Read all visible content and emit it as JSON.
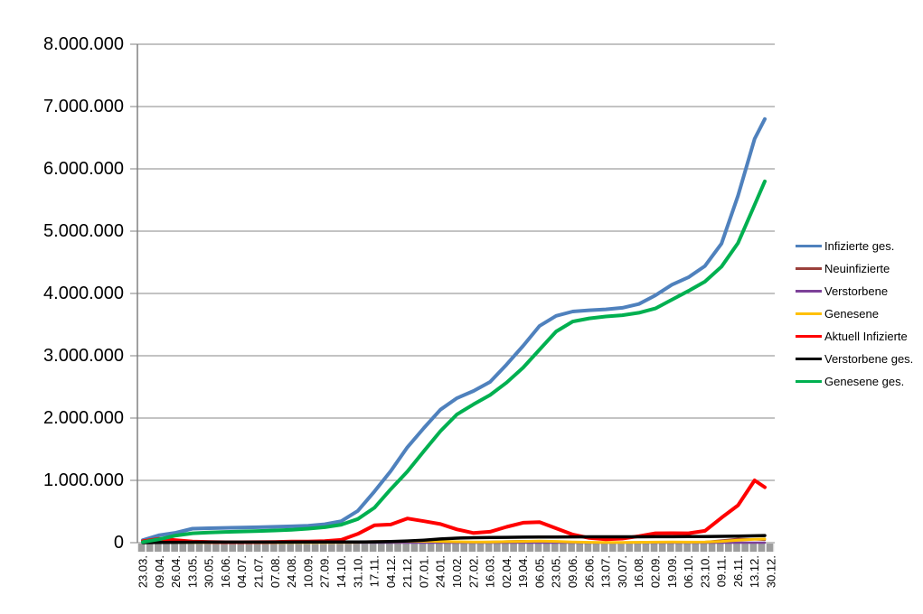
{
  "chart_data": {
    "type": "line",
    "title": "",
    "xlabel": "",
    "ylabel": "",
    "ylim": [
      0,
      8000000
    ],
    "ytick_step": 1000000,
    "ytick_labels": [
      "0",
      "1.000.000",
      "2.000.000",
      "3.000.000",
      "4.000.000",
      "5.000.000",
      "6.000.000",
      "7.000.000",
      "8.000.000"
    ],
    "grid": true,
    "legend_position": "right",
    "categories": [
      "23.03.",
      "09.04.",
      "26.04.",
      "13.05.",
      "30.05.",
      "16.06.",
      "04.07.",
      "21.07.",
      "07.08.",
      "24.08.",
      "10.09.",
      "27.09.",
      "14.10.",
      "31.10.",
      "17.11.",
      "04.12.",
      "21.12.",
      "07.01.",
      "24.01.",
      "10.02.",
      "27.02.",
      "16.03.",
      "02.04.",
      "19.04.",
      "06.05.",
      "23.05.",
      "09.06.",
      "26.06.",
      "13.07.",
      "30.07.",
      "16.08.",
      "02.09.",
      "19.09.",
      "06.10.",
      "23.10.",
      "09.11.",
      "26.11.",
      "13.12.",
      "30.12."
    ],
    "series": [
      {
        "name": "Infizierte ges.",
        "color": "#4F81BD",
        "width": 4,
        "values": [
          40000,
          120000,
          160000,
          225000,
          232000,
          237000,
          243000,
          248000,
          255000,
          263000,
          272000,
          295000,
          345000,
          510000,
          820000,
          1150000,
          1530000,
          1840000,
          2135000,
          2320000,
          2435000,
          2580000,
          2860000,
          3160000,
          3480000,
          3640000,
          3710000,
          3730000,
          3745000,
          3770000,
          3830000,
          3970000,
          4140000,
          4260000,
          4440000,
          4800000,
          5570000,
          6480000,
          6800000
        ]
      },
      {
        "name": "Neuinfizierte",
        "color": "#9A403B",
        "width": 2.5,
        "values": [
          4000,
          5000,
          2000,
          900,
          500,
          400,
          400,
          500,
          900,
          1400,
          1500,
          2000,
          5000,
          15000,
          22000,
          22000,
          28000,
          22000,
          15000,
          9000,
          8000,
          13000,
          20000,
          24000,
          20000,
          8000,
          3500,
          1200,
          1000,
          2500,
          5500,
          10000,
          8500,
          8000,
          12000,
          35000,
          60000,
          55000,
          45000
        ]
      },
      {
        "name": "Verstorbene",
        "color": "#7D4199",
        "width": 2.5,
        "values": [
          30,
          150,
          200,
          150,
          60,
          30,
          10,
          10,
          10,
          10,
          10,
          20,
          30,
          60,
          150,
          300,
          500,
          700,
          700,
          550,
          400,
          250,
          200,
          200,
          180,
          120,
          80,
          40,
          20,
          20,
          20,
          40,
          60,
          60,
          70,
          120,
          250,
          400,
          350
        ]
      },
      {
        "name": "Genesene",
        "color": "#FFC000",
        "width": 3,
        "values": [
          2000,
          4000,
          3500,
          1500,
          800,
          500,
          400,
          500,
          700,
          900,
          1000,
          1300,
          2500,
          6000,
          14000,
          18000,
          22000,
          25000,
          20000,
          14000,
          10000,
          11000,
          16000,
          20000,
          24000,
          20000,
          12000,
          6000,
          3000,
          3500,
          6000,
          9000,
          10000,
          9000,
          10000,
          20000,
          40000,
          55000,
          60000
        ]
      },
      {
        "name": "Aktuell Infizierte",
        "color": "#FF0000",
        "width": 4,
        "values": [
          25000,
          62000,
          39000,
          17000,
          10000,
          7000,
          7000,
          9000,
          12000,
          17000,
          19000,
          24000,
          45000,
          140000,
          278000,
          292000,
          388000,
          345000,
          298000,
          213000,
          155000,
          175000,
          253000,
          320000,
          330000,
          230000,
          130000,
          75000,
          55000,
          65000,
          105000,
          150000,
          152000,
          150000,
          190000,
          400000,
          600000,
          1000000,
          890000
        ]
      },
      {
        "name": "Verstorbene ges.",
        "color": "#000000",
        "width": 3.5,
        "values": [
          300,
          2800,
          6000,
          7900,
          8600,
          8900,
          9100,
          9200,
          9300,
          9400,
          9500,
          9700,
          10000,
          10800,
          13500,
          19000,
          28000,
          40000,
          60000,
          72000,
          80000,
          84000,
          86000,
          88000,
          90000,
          92000,
          93000,
          93500,
          93800,
          94000,
          94500,
          95000,
          96000,
          97500,
          99000,
          101000,
          105000,
          110000,
          114000
        ]
      },
      {
        "name": "Genesene ges.",
        "color": "#00B050",
        "width": 4,
        "values": [
          10000,
          55000,
          115000,
          150000,
          163000,
          172000,
          180000,
          187000,
          196000,
          207000,
          224000,
          248000,
          288000,
          380000,
          560000,
          860000,
          1140000,
          1470000,
          1790000,
          2060000,
          2220000,
          2370000,
          2570000,
          2810000,
          3100000,
          3390000,
          3550000,
          3600000,
          3630000,
          3650000,
          3690000,
          3760000,
          3900000,
          4040000,
          4190000,
          4430000,
          4810000,
          5420000,
          5800000
        ]
      }
    ]
  },
  "colors": {
    "background": "#FFFFFF",
    "gridline": "#878787",
    "axis": "#808080",
    "tick_band": "#9D9D9D",
    "tick_separator": "#FFFFFF",
    "text": "#000000"
  }
}
